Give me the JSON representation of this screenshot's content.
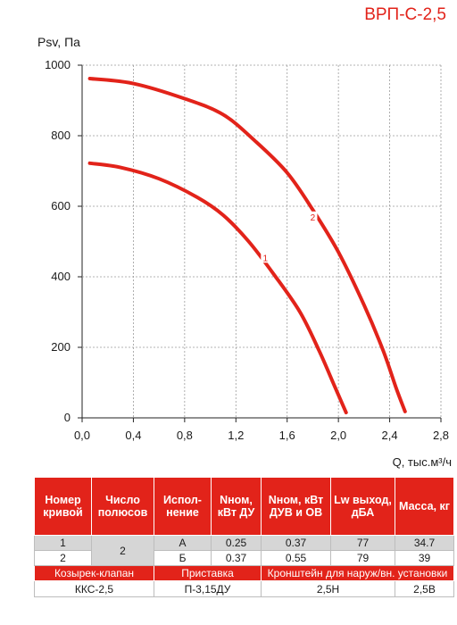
{
  "model": "ВРП-С-2,5",
  "chart_data": {
    "type": "line",
    "ylabel": "Psv, Па",
    "xlabel": "Q, тыс.м³/ч",
    "xlim": [
      0,
      2.8
    ],
    "ylim": [
      0,
      1000
    ],
    "x_ticks": [
      "0,0",
      "0,4",
      "0,8",
      "1,2",
      "1,6",
      "2,0",
      "2,4",
      "2,8"
    ],
    "y_ticks": [
      "0",
      "200",
      "400",
      "600",
      "800",
      "1000"
    ],
    "color": "#e2231a",
    "series": [
      {
        "name": "1",
        "label_at": [
          1.43,
          450
        ],
        "points": [
          [
            0.06,
            722
          ],
          [
            0.3,
            710
          ],
          [
            0.6,
            678
          ],
          [
            0.9,
            625
          ],
          [
            1.1,
            575
          ],
          [
            1.3,
            500
          ],
          [
            1.5,
            405
          ],
          [
            1.7,
            300
          ],
          [
            1.85,
            190
          ],
          [
            1.97,
            90
          ],
          [
            2.06,
            15
          ]
        ]
      },
      {
        "name": "2",
        "label_at": [
          1.8,
          565
        ],
        "points": [
          [
            0.06,
            962
          ],
          [
            0.4,
            948
          ],
          [
            0.8,
            905
          ],
          [
            1.1,
            860
          ],
          [
            1.35,
            785
          ],
          [
            1.6,
            695
          ],
          [
            1.8,
            590
          ],
          [
            2.0,
            470
          ],
          [
            2.2,
            320
          ],
          [
            2.35,
            190
          ],
          [
            2.45,
            85
          ],
          [
            2.52,
            18
          ]
        ]
      }
    ]
  },
  "table": {
    "headers": [
      "Номер кривой",
      "Число полюсов",
      "Испол-нение",
      "Nном, кВт ДУ",
      "Nном, кВт ДУВ и ОВ",
      "Lw выход, дБА",
      "Масса, кг"
    ],
    "rows": [
      [
        "1",
        "2",
        "А",
        "0.25",
        "0.37",
        "77",
        "34.7"
      ],
      [
        "2",
        "",
        "Б",
        "0.37",
        "0.55",
        "79",
        "39"
      ]
    ],
    "accessories_header": [
      "Козырек-клапан",
      "Приставка",
      "Кронштейн для наруж/вн. установки"
    ],
    "accessories_values": [
      "ККС-2,5",
      "П-3,15ДУ",
      "2,5Н",
      "2,5В"
    ]
  }
}
